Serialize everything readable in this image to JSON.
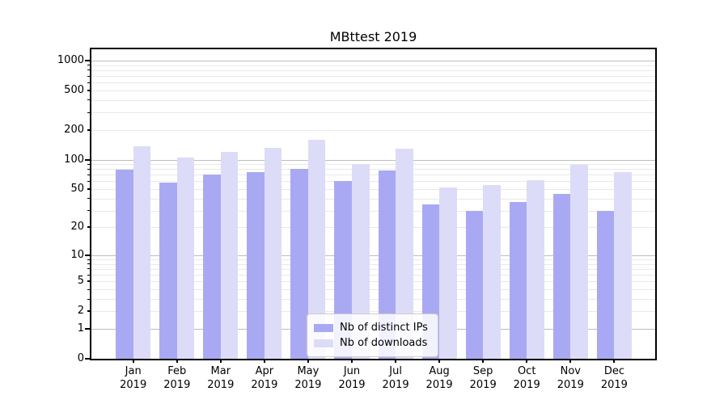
{
  "title": "MBttest 2019",
  "chart_data": {
    "type": "bar",
    "title": "MBttest 2019",
    "categories": [
      "Jan",
      "Feb",
      "Mar",
      "Apr",
      "May",
      "Jun",
      "Jul",
      "Aug",
      "Sep",
      "Oct",
      "Nov",
      "Dec"
    ],
    "year_label": "2019",
    "series": [
      {
        "name": "Nb of distinct IPs",
        "color": "#a9a9f3",
        "values": [
          79,
          58,
          71,
          75,
          81,
          60,
          78,
          35,
          30,
          37,
          45,
          30
        ]
      },
      {
        "name": "Nb of downloads",
        "color": "#dcdcf8",
        "values": [
          137,
          105,
          119,
          131,
          159,
          91,
          130,
          52,
          55,
          62,
          88,
          75
        ]
      }
    ],
    "y_axis": {
      "scale": "log1p",
      "tick_labels": [
        1000,
        500,
        200,
        100,
        50,
        20,
        10,
        5,
        2,
        1,
        0
      ],
      "major_ticks": [
        1000,
        100,
        10,
        1,
        0
      ],
      "ylim": [
        0,
        1300
      ]
    },
    "legend": {
      "position": "lower center-left"
    },
    "grid": "horizontal major+minor",
    "colors": {
      "major_grid": "#bdbdbd",
      "minor_grid": "#e9e9e9",
      "axis": "#000000",
      "background": "#ffffff"
    }
  }
}
